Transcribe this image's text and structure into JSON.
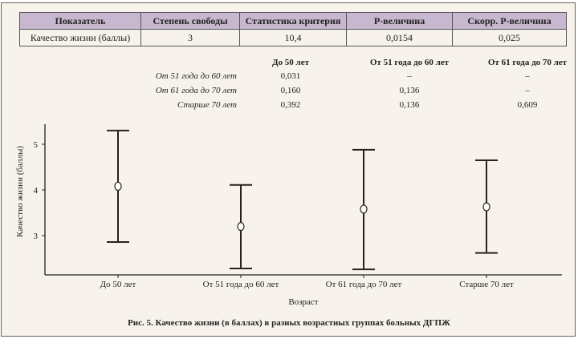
{
  "stats_table": {
    "headers": [
      "Показатель",
      "Степень свободы",
      "Статистика критерия",
      "P-величина",
      "Скорр. P-величина"
    ],
    "row": [
      "Качество жизни (баллы)",
      "3",
      "10,4",
      "0,0154",
      "0,025"
    ]
  },
  "pairwise_table": {
    "columns": [
      "До 50 лет",
      "От 51 года до 60 лет",
      "От 61 года до 70 лет"
    ],
    "rows": [
      {
        "label": "От 51 года до 60 лет",
        "values": [
          "0,031",
          "–",
          "–"
        ]
      },
      {
        "label": "От 61 года до 70 лет",
        "values": [
          "0,160",
          "0,136",
          "–"
        ]
      },
      {
        "label": "Старше 70 лет",
        "values": [
          "0,392",
          "0,136",
          "0,609"
        ]
      }
    ]
  },
  "chart_data": {
    "type": "errorbar",
    "title": "Рис. 5. Качество жизни (в баллах) в разных возрастных группах больных ДГПЖ",
    "xlabel": "Возраст",
    "ylabel": "Качество жизни (баллы)",
    "categories": [
      "До 50 лет",
      "От 51 года до 60 лет",
      "От 61 года до 70 лет",
      "Старше 70 лет"
    ],
    "mean": [
      4.08,
      3.2,
      3.58,
      3.63
    ],
    "upper": [
      5.3,
      4.11,
      4.88,
      4.65
    ],
    "lower": [
      2.86,
      2.28,
      2.26,
      2.62
    ],
    "yticks": [
      "3",
      "4",
      "5"
    ],
    "ytick_values": [
      3,
      4,
      5
    ],
    "ylim": [
      2.14,
      5.44
    ],
    "grid": false
  }
}
